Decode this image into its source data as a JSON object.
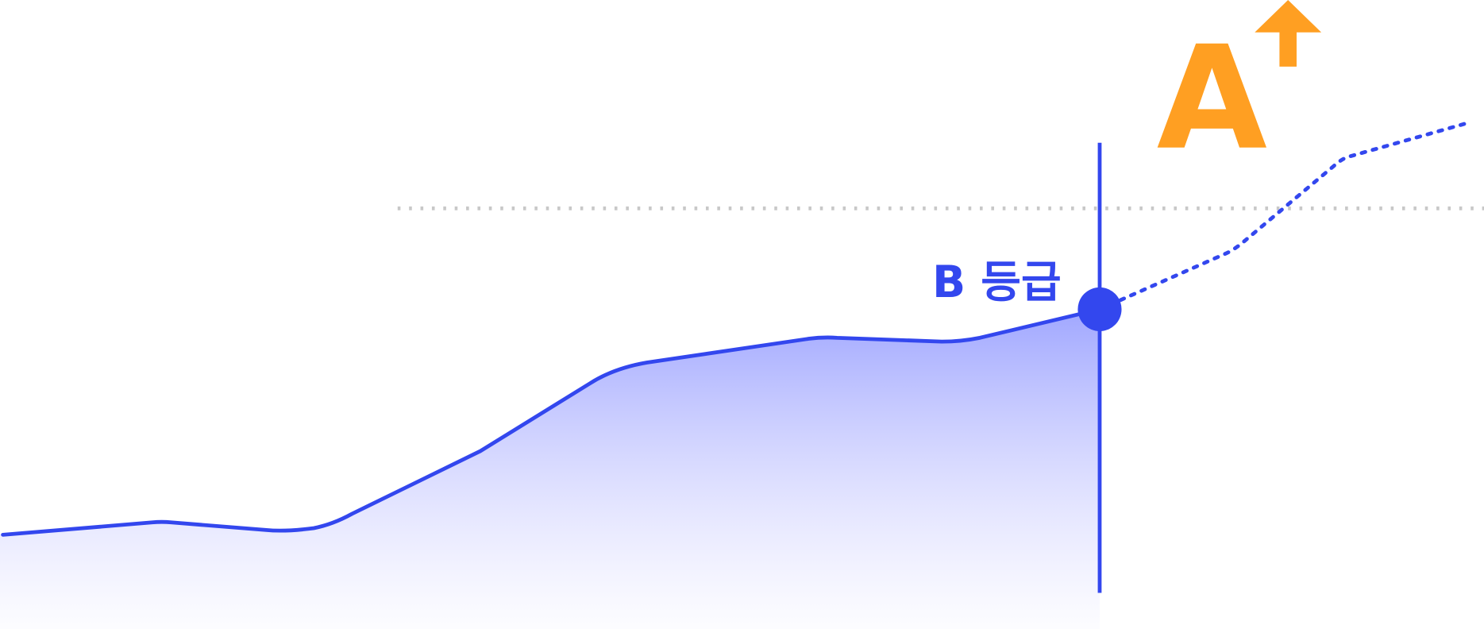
{
  "current_grade": "B 등급",
  "target_grade": "A"
}
